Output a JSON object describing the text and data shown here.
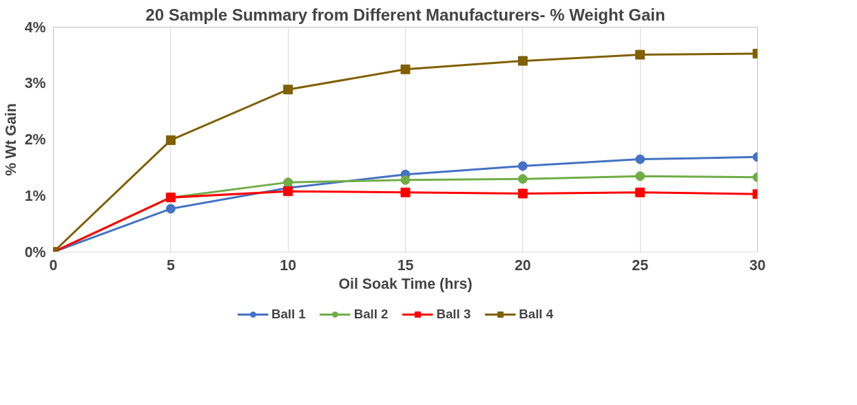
{
  "chart_data": {
    "type": "line",
    "title": "20 Sample Summary from Different Manufacturers- % Weight Gain",
    "xlabel": "Oil Soak Time (hrs)",
    "ylabel": "% Wt Gain",
    "x": [
      0,
      5,
      10,
      15,
      20,
      25,
      30
    ],
    "series": [
      {
        "name": "Ball 1",
        "color": "#4472c4",
        "marker": "circle",
        "values": [
          0,
          0.77,
          1.14,
          1.38,
          1.53,
          1.65,
          1.69
        ]
      },
      {
        "name": "Ball 2",
        "color": "#70ad47",
        "marker": "circle",
        "values": [
          0,
          0.97,
          1.24,
          1.28,
          1.3,
          1.35,
          1.33
        ]
      },
      {
        "name": "Ball 3",
        "color": "#ff0000",
        "marker": "square",
        "values": [
          0,
          0.97,
          1.08,
          1.06,
          1.04,
          1.06,
          1.03
        ]
      },
      {
        "name": "Ball 4",
        "color": "#806000",
        "marker": "square",
        "values": [
          0,
          1.99,
          2.89,
          3.25,
          3.4,
          3.51,
          3.53
        ]
      }
    ],
    "xlim": [
      0,
      30
    ],
    "xticks": [
      0,
      5,
      10,
      15,
      20,
      25,
      30
    ],
    "ylim": [
      0,
      4
    ],
    "yticks": [
      {
        "value": 0,
        "label": "0%"
      },
      {
        "value": 1,
        "label": "1%"
      },
      {
        "value": 2,
        "label": "2%"
      },
      {
        "value": 3,
        "label": "3%"
      },
      {
        "value": 4,
        "label": "4%"
      }
    ],
    "grid": "x",
    "legend": "bottom",
    "line_style": "solid"
  }
}
